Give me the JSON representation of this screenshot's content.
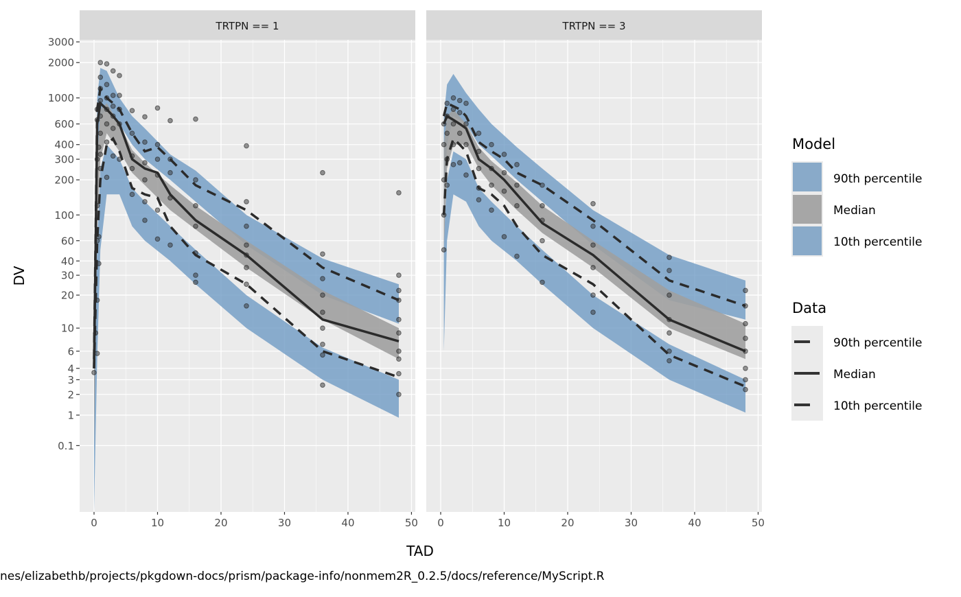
{
  "chart_data": {
    "type": "line",
    "title": "",
    "xlabel": "TAD",
    "ylabel": "DV",
    "y_transform": "log10(y+1)",
    "xlim": [
      -2.27,
      50.6
    ],
    "ylim": [
      -0.7,
      3125
    ],
    "x_ticks": [
      0,
      10,
      20,
      30,
      40,
      50
    ],
    "x_tick_labels": [
      "0",
      "10",
      "20",
      "30",
      "40",
      "50"
    ],
    "y_ticks": [
      0.1,
      1,
      2,
      3,
      4,
      6,
      10,
      20,
      30,
      40,
      60,
      100,
      200,
      300,
      400,
      600,
      1000,
      2000,
      3000
    ],
    "y_tick_labels": [
      "0.1",
      "1",
      "2",
      "3",
      "4",
      "6",
      "10",
      "20",
      "30",
      "40",
      "60",
      "100",
      "200",
      "300",
      "400",
      "600",
      "1000",
      "2000",
      "3000"
    ],
    "grid": true,
    "caption": "nes/elizabethb/projects/pkgdown-docs/prism/package-info/nonmem2R_0.2.5/docs/reference/MyScript.R",
    "colors": {
      "band_outer": "#6f9bc4",
      "band_median": "#a6a6a6",
      "line": "#2b2b2b",
      "point": "#333333",
      "panel": "#ebebeb",
      "strip": "#d9d9d9"
    },
    "legend": {
      "placement": "right",
      "model": {
        "title": "Model",
        "items": [
          {
            "label": "90th percentile",
            "color": "#89aac9"
          },
          {
            "label": "Median",
            "color": "#a6a6a6"
          },
          {
            "label": "10th percentile",
            "color": "#89aac9"
          }
        ]
      },
      "data": {
        "title": "Data",
        "items": [
          {
            "label": "90th percentile",
            "style": "dashed"
          },
          {
            "label": "Median",
            "style": "solid"
          },
          {
            "label": "10th percentile",
            "style": "dashed"
          }
        ]
      }
    },
    "panels": [
      {
        "strip": "TRTPN == 1",
        "model_bands": {
          "t": [
            0,
            0.5,
            1,
            2,
            4,
            6,
            8,
            12,
            16,
            24,
            36,
            48
          ],
          "p90": {
            "lo": [
              0,
              300,
              700,
              800,
              600,
              400,
              300,
              200,
              130,
              55,
              20,
              11
            ],
            "hi": [
              3,
              1000,
              1800,
              1700,
              1000,
              700,
              550,
              330,
              240,
              100,
              42,
              25
            ]
          },
          "p50": {
            "lo": [
              0,
              80,
              300,
              500,
              350,
              230,
              180,
              110,
              75,
              35,
              12,
              5
            ],
            "hi": [
              3,
              300,
              800,
              900,
              600,
              360,
              280,
              180,
              120,
              60,
              22,
              10
            ]
          },
          "p10": {
            "lo": [
              -0.7,
              5,
              50,
              150,
              150,
              80,
              60,
              40,
              25,
              10,
              3,
              0.9
            ],
            "hi": [
              2,
              60,
              250,
              400,
              300,
              170,
              130,
              80,
              50,
              20,
              6.5,
              3
            ]
          }
        },
        "observed": {
          "t": [
            0,
            0.5,
            1,
            2,
            3,
            4,
            6,
            8,
            10,
            12,
            16,
            24,
            36,
            48
          ],
          "p90": [
            5,
            800,
            1200,
            1000,
            900,
            800,
            500,
            350,
            380,
            300,
            180,
            110,
            35,
            18
          ],
          "p50": [
            4,
            600,
            900,
            800,
            700,
            600,
            300,
            250,
            230,
            150,
            90,
            45,
            12,
            7.5
          ],
          "p10": [
            4,
            60,
            200,
            400,
            450,
            350,
            170,
            150,
            140,
            80,
            45,
            25,
            6,
            3.2
          ]
        },
        "points": [
          [
            0,
            3.6
          ],
          [
            0.25,
            9
          ],
          [
            0.5,
            5.7
          ],
          [
            0.5,
            18
          ],
          [
            0.5,
            60
          ],
          [
            0.5,
            120
          ],
          [
            0.5,
            300
          ],
          [
            0.5,
            650
          ],
          [
            0.5,
            800
          ],
          [
            0.75,
            38
          ],
          [
            0.75,
            65
          ],
          [
            0.75,
            380
          ],
          [
            1,
            2000
          ],
          [
            1,
            1500
          ],
          [
            1,
            1200
          ],
          [
            1,
            950
          ],
          [
            1,
            700
          ],
          [
            1,
            500
          ],
          [
            1,
            330
          ],
          [
            1,
            250
          ],
          [
            2,
            1950
          ],
          [
            2,
            1300
          ],
          [
            2,
            1000
          ],
          [
            2,
            800
          ],
          [
            2,
            600
          ],
          [
            2,
            420
          ],
          [
            2,
            210
          ],
          [
            3,
            1700
          ],
          [
            3,
            1050
          ],
          [
            3,
            850
          ],
          [
            3,
            700
          ],
          [
            3,
            550
          ],
          [
            3,
            320
          ],
          [
            4,
            1550
          ],
          [
            4,
            1050
          ],
          [
            4,
            800
          ],
          [
            4,
            600
          ],
          [
            4,
            300
          ],
          [
            6,
            780
          ],
          [
            6,
            500
          ],
          [
            6,
            320
          ],
          [
            6,
            250
          ],
          [
            6,
            150
          ],
          [
            8,
            690
          ],
          [
            8,
            420
          ],
          [
            8,
            280
          ],
          [
            8,
            200
          ],
          [
            8,
            130
          ],
          [
            8,
            90
          ],
          [
            10,
            820
          ],
          [
            10,
            400
          ],
          [
            10,
            300
          ],
          [
            10,
            220
          ],
          [
            10,
            110
          ],
          [
            10,
            62
          ],
          [
            12,
            640
          ],
          [
            12,
            300
          ],
          [
            12,
            230
          ],
          [
            12,
            140
          ],
          [
            12,
            55
          ],
          [
            16,
            660
          ],
          [
            16,
            200
          ],
          [
            16,
            120
          ],
          [
            16,
            80
          ],
          [
            16,
            47
          ],
          [
            16,
            30
          ],
          [
            16,
            26
          ],
          [
            24,
            390
          ],
          [
            24,
            130
          ],
          [
            24,
            80
          ],
          [
            24,
            55
          ],
          [
            24,
            45
          ],
          [
            24,
            35
          ],
          [
            24,
            25
          ],
          [
            24,
            16
          ],
          [
            36,
            230
          ],
          [
            36,
            46
          ],
          [
            36,
            28
          ],
          [
            36,
            20
          ],
          [
            36,
            14
          ],
          [
            36,
            10
          ],
          [
            36,
            7
          ],
          [
            36,
            5.5
          ],
          [
            36,
            2.6
          ],
          [
            48,
            155
          ],
          [
            48,
            30
          ],
          [
            48,
            22
          ],
          [
            48,
            18
          ],
          [
            48,
            12
          ],
          [
            48,
            9
          ],
          [
            48,
            6
          ],
          [
            48,
            5
          ],
          [
            48,
            3.5
          ],
          [
            48,
            2
          ]
        ]
      },
      {
        "strip": "TRTPN == 3",
        "model_bands": {
          "t": [
            0.5,
            1,
            2,
            4,
            6,
            8,
            12,
            16,
            24,
            36,
            48
          ],
          "p90": {
            "lo": [
              100,
              400,
              700,
              600,
              400,
              320,
              200,
              130,
              55,
              18,
              12
            ],
            "hi": [
              700,
              1300,
              1600,
              1100,
              800,
              600,
              380,
              250,
              110,
              45,
              27
            ]
          },
          "p50": {
            "lo": [
              50,
              250,
              400,
              400,
              250,
              180,
              110,
              70,
              35,
              10,
              5
            ],
            "hi": [
              400,
              700,
              800,
              600,
              380,
              290,
              190,
              120,
              60,
              22,
              11
            ]
          },
          "p10": {
            "lo": [
              6,
              60,
              150,
              130,
              80,
              60,
              40,
              25,
              10,
              3,
              1.1
            ],
            "hi": [
              60,
              200,
              350,
              300,
              170,
              130,
              80,
              50,
              20,
              7,
              3
            ]
          }
        },
        "observed": {
          "t": [
            0.5,
            1,
            2,
            3,
            4,
            6,
            8,
            10,
            12,
            16,
            24,
            36,
            48
          ],
          "p90": [
            700,
            900,
            850,
            800,
            700,
            420,
            350,
            300,
            230,
            180,
            90,
            27,
            16
          ],
          "p50": [
            600,
            700,
            650,
            600,
            550,
            300,
            250,
            200,
            150,
            85,
            45,
            12,
            6
          ],
          "p10": [
            100,
            300,
            450,
            400,
            350,
            170,
            150,
            120,
            80,
            45,
            25,
            5.5,
            2.5
          ]
        },
        "points": [
          [
            0.5,
            50
          ],
          [
            0.5,
            100
          ],
          [
            0.5,
            200
          ],
          [
            0.5,
            400
          ],
          [
            0.5,
            600
          ],
          [
            1,
            900
          ],
          [
            1,
            700
          ],
          [
            1,
            500
          ],
          [
            1,
            300
          ],
          [
            1,
            180
          ],
          [
            2,
            1000
          ],
          [
            2,
            800
          ],
          [
            2,
            600
          ],
          [
            2,
            400
          ],
          [
            2,
            270
          ],
          [
            3,
            950
          ],
          [
            3,
            750
          ],
          [
            3,
            500
          ],
          [
            3,
            280
          ],
          [
            4,
            900
          ],
          [
            4,
            600
          ],
          [
            4,
            400
          ],
          [
            4,
            220
          ],
          [
            6,
            500
          ],
          [
            6,
            350
          ],
          [
            6,
            250
          ],
          [
            6,
            170
          ],
          [
            6,
            135
          ],
          [
            8,
            400
          ],
          [
            8,
            250
          ],
          [
            8,
            180
          ],
          [
            8,
            110
          ],
          [
            10,
            330
          ],
          [
            10,
            230
          ],
          [
            10,
            160
          ],
          [
            10,
            65
          ],
          [
            12,
            270
          ],
          [
            12,
            180
          ],
          [
            12,
            120
          ],
          [
            12,
            44
          ],
          [
            16,
            180
          ],
          [
            16,
            120
          ],
          [
            16,
            90
          ],
          [
            16,
            60
          ],
          [
            16,
            26
          ],
          [
            24,
            125
          ],
          [
            24,
            80
          ],
          [
            24,
            55
          ],
          [
            24,
            35
          ],
          [
            24,
            20
          ],
          [
            24,
            14
          ],
          [
            36,
            43
          ],
          [
            36,
            33
          ],
          [
            36,
            20
          ],
          [
            36,
            12
          ],
          [
            36,
            9
          ],
          [
            36,
            6
          ],
          [
            36,
            4.8
          ],
          [
            48,
            22
          ],
          [
            48,
            16
          ],
          [
            48,
            11
          ],
          [
            48,
            8
          ],
          [
            48,
            6
          ],
          [
            48,
            4
          ],
          [
            48,
            3
          ],
          [
            48,
            2.3
          ]
        ]
      }
    ]
  }
}
